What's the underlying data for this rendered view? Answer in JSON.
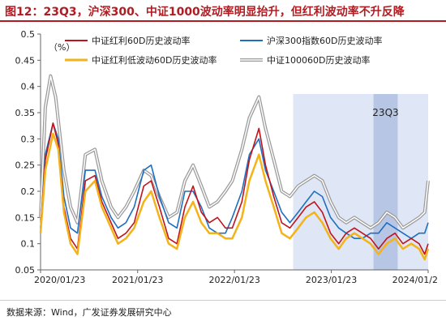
{
  "figure": {
    "title": "图12：23Q3，沪深300、中证1000波动率明显抬升，但红利波动率不升反降",
    "source": "数据来源：Wind，广发证券发展研究中心"
  },
  "chart_data": {
    "type": "line",
    "ylabel": "（%）",
    "ylim": [
      0.05,
      0.5
    ],
    "yticks": [
      0.05,
      0.1,
      0.15,
      0.2,
      0.25,
      0.3,
      0.35,
      0.4,
      0.45,
      0.5
    ],
    "xlim": [
      "2020-01-23",
      "2024-01-23"
    ],
    "xticks": [
      {
        "date": "2020-01-23",
        "label": "2020/01/23"
      },
      {
        "date": "2021-01-23",
        "label": "2021/01/23"
      },
      {
        "date": "2022-01-23",
        "label": "2022/01/23"
      },
      {
        "date": "2023-01-23",
        "label": "2023/01/23"
      },
      {
        "date": "2024-01-23",
        "label": "2024/01/2"
      }
    ],
    "shaded_regions": [
      {
        "start": "2022-09-01",
        "end": "2024-01-23",
        "color": "#dfe6f5"
      },
      {
        "start": "2023-07-01",
        "end": "2023-09-30",
        "color": "#b7c6e5",
        "label": "23Q3"
      }
    ],
    "legend_position": "top",
    "grid": false,
    "series": [
      {
        "name": "中证红利60D历史波动率",
        "color": "#c0141c",
        "points": [
          [
            "2020-01-23",
            0.13
          ],
          [
            "2020-02-10",
            0.26
          ],
          [
            "2020-03-10",
            0.33
          ],
          [
            "2020-03-30",
            0.29
          ],
          [
            "2020-04-20",
            0.17
          ],
          [
            "2020-05-15",
            0.11
          ],
          [
            "2020-06-10",
            0.09
          ],
          [
            "2020-07-10",
            0.22
          ],
          [
            "2020-08-15",
            0.23
          ],
          [
            "2020-09-10",
            0.18
          ],
          [
            "2020-10-15",
            0.14
          ],
          [
            "2020-11-10",
            0.11
          ],
          [
            "2020-12-10",
            0.12
          ],
          [
            "2021-01-10",
            0.14
          ],
          [
            "2021-02-15",
            0.21
          ],
          [
            "2021-03-15",
            0.22
          ],
          [
            "2021-04-15",
            0.17
          ],
          [
            "2021-05-20",
            0.11
          ],
          [
            "2021-06-20",
            0.1
          ],
          [
            "2021-07-20",
            0.17
          ],
          [
            "2021-08-20",
            0.21
          ],
          [
            "2021-09-20",
            0.16
          ],
          [
            "2021-10-20",
            0.14
          ],
          [
            "2021-11-20",
            0.15
          ],
          [
            "2021-12-20",
            0.13
          ],
          [
            "2022-01-15",
            0.13
          ],
          [
            "2022-02-20",
            0.18
          ],
          [
            "2022-03-20",
            0.26
          ],
          [
            "2022-04-25",
            0.32
          ],
          [
            "2022-05-20",
            0.25
          ],
          [
            "2022-06-20",
            0.19
          ],
          [
            "2022-07-20",
            0.14
          ],
          [
            "2022-08-20",
            0.13
          ],
          [
            "2022-09-20",
            0.15
          ],
          [
            "2022-10-20",
            0.17
          ],
          [
            "2022-11-20",
            0.18
          ],
          [
            "2022-12-20",
            0.16
          ],
          [
            "2023-01-20",
            0.12
          ],
          [
            "2023-02-20",
            0.1
          ],
          [
            "2023-03-20",
            0.12
          ],
          [
            "2023-04-20",
            0.13
          ],
          [
            "2023-05-20",
            0.12
          ],
          [
            "2023-06-20",
            0.11
          ],
          [
            "2023-07-20",
            0.09
          ],
          [
            "2023-08-20",
            0.11
          ],
          [
            "2023-09-20",
            0.12
          ],
          [
            "2023-10-20",
            0.1
          ],
          [
            "2023-11-20",
            0.11
          ],
          [
            "2023-12-20",
            0.1
          ],
          [
            "2024-01-10",
            0.08
          ],
          [
            "2024-01-23",
            0.1
          ]
        ]
      },
      {
        "name": "沪深300指数60D历史波动率",
        "color": "#1f6fc0",
        "points": [
          [
            "2020-01-23",
            0.13
          ],
          [
            "2020-02-10",
            0.27
          ],
          [
            "2020-03-10",
            0.33
          ],
          [
            "2020-03-30",
            0.3
          ],
          [
            "2020-04-20",
            0.19
          ],
          [
            "2020-05-15",
            0.13
          ],
          [
            "2020-06-10",
            0.12
          ],
          [
            "2020-07-10",
            0.24
          ],
          [
            "2020-08-15",
            0.24
          ],
          [
            "2020-09-10",
            0.19
          ],
          [
            "2020-10-15",
            0.15
          ],
          [
            "2020-11-10",
            0.13
          ],
          [
            "2020-12-10",
            0.14
          ],
          [
            "2021-01-10",
            0.17
          ],
          [
            "2021-02-15",
            0.24
          ],
          [
            "2021-03-15",
            0.25
          ],
          [
            "2021-04-15",
            0.19
          ],
          [
            "2021-05-20",
            0.14
          ],
          [
            "2021-06-20",
            0.13
          ],
          [
            "2021-07-20",
            0.2
          ],
          [
            "2021-08-20",
            0.2
          ],
          [
            "2021-09-20",
            0.17
          ],
          [
            "2021-10-20",
            0.13
          ],
          [
            "2021-11-20",
            0.12
          ],
          [
            "2021-12-20",
            0.12
          ],
          [
            "2022-01-15",
            0.15
          ],
          [
            "2022-02-20",
            0.2
          ],
          [
            "2022-03-20",
            0.27
          ],
          [
            "2022-04-25",
            0.3
          ],
          [
            "2022-05-20",
            0.24
          ],
          [
            "2022-06-20",
            0.2
          ],
          [
            "2022-07-20",
            0.16
          ],
          [
            "2022-08-20",
            0.14
          ],
          [
            "2022-09-20",
            0.16
          ],
          [
            "2022-10-20",
            0.18
          ],
          [
            "2022-11-20",
            0.2
          ],
          [
            "2022-12-20",
            0.19
          ],
          [
            "2023-01-20",
            0.15
          ],
          [
            "2023-02-20",
            0.13
          ],
          [
            "2023-03-20",
            0.12
          ],
          [
            "2023-04-20",
            0.11
          ],
          [
            "2023-05-20",
            0.11
          ],
          [
            "2023-06-20",
            0.12
          ],
          [
            "2023-07-20",
            0.12
          ],
          [
            "2023-08-20",
            0.14
          ],
          [
            "2023-09-20",
            0.13
          ],
          [
            "2023-10-20",
            0.12
          ],
          [
            "2023-11-20",
            0.11
          ],
          [
            "2023-12-20",
            0.12
          ],
          [
            "2024-01-10",
            0.12
          ],
          [
            "2024-01-23",
            0.14
          ]
        ]
      },
      {
        "name": "中证红利低波动60D历史波动率",
        "color": "#f3b31a",
        "points": [
          [
            "2020-01-23",
            0.12
          ],
          [
            "2020-02-10",
            0.24
          ],
          [
            "2020-03-10",
            0.31
          ],
          [
            "2020-03-30",
            0.28
          ],
          [
            "2020-04-20",
            0.16
          ],
          [
            "2020-05-15",
            0.1
          ],
          [
            "2020-06-10",
            0.08
          ],
          [
            "2020-07-10",
            0.2
          ],
          [
            "2020-08-15",
            0.22
          ],
          [
            "2020-09-10",
            0.17
          ],
          [
            "2020-10-15",
            0.13
          ],
          [
            "2020-11-10",
            0.1
          ],
          [
            "2020-12-10",
            0.11
          ],
          [
            "2021-01-10",
            0.13
          ],
          [
            "2021-02-15",
            0.18
          ],
          [
            "2021-03-15",
            0.2
          ],
          [
            "2021-04-15",
            0.15
          ],
          [
            "2021-05-20",
            0.1
          ],
          [
            "2021-06-20",
            0.09
          ],
          [
            "2021-07-20",
            0.15
          ],
          [
            "2021-08-20",
            0.18
          ],
          [
            "2021-09-20",
            0.14
          ],
          [
            "2021-10-20",
            0.12
          ],
          [
            "2021-11-20",
            0.12
          ],
          [
            "2021-12-20",
            0.11
          ],
          [
            "2022-01-15",
            0.11
          ],
          [
            "2022-02-20",
            0.15
          ],
          [
            "2022-03-20",
            0.22
          ],
          [
            "2022-04-25",
            0.27
          ],
          [
            "2022-05-20",
            0.22
          ],
          [
            "2022-06-20",
            0.17
          ],
          [
            "2022-07-20",
            0.12
          ],
          [
            "2022-08-20",
            0.11
          ],
          [
            "2022-09-20",
            0.13
          ],
          [
            "2022-10-20",
            0.15
          ],
          [
            "2022-11-20",
            0.16
          ],
          [
            "2022-12-20",
            0.14
          ],
          [
            "2023-01-20",
            0.11
          ],
          [
            "2023-02-20",
            0.09
          ],
          [
            "2023-03-20",
            0.11
          ],
          [
            "2023-04-20",
            0.12
          ],
          [
            "2023-05-20",
            0.11
          ],
          [
            "2023-06-20",
            0.1
          ],
          [
            "2023-07-20",
            0.08
          ],
          [
            "2023-08-20",
            0.1
          ],
          [
            "2023-09-20",
            0.11
          ],
          [
            "2023-10-20",
            0.09
          ],
          [
            "2023-11-20",
            0.1
          ],
          [
            "2023-12-20",
            0.09
          ],
          [
            "2024-01-10",
            0.07
          ],
          [
            "2024-01-23",
            0.09
          ]
        ]
      },
      {
        "name": "中证100060D历史波动率",
        "color": "#9a9a9a",
        "points": [
          [
            "2020-01-23",
            0.15
          ],
          [
            "2020-02-10",
            0.36
          ],
          [
            "2020-03-01",
            0.42
          ],
          [
            "2020-03-20",
            0.38
          ],
          [
            "2020-04-20",
            0.24
          ],
          [
            "2020-05-15",
            0.17
          ],
          [
            "2020-06-10",
            0.14
          ],
          [
            "2020-07-10",
            0.27
          ],
          [
            "2020-08-15",
            0.28
          ],
          [
            "2020-09-10",
            0.22
          ],
          [
            "2020-10-15",
            0.17
          ],
          [
            "2020-11-10",
            0.15
          ],
          [
            "2020-12-10",
            0.17
          ],
          [
            "2021-01-10",
            0.2
          ],
          [
            "2021-02-15",
            0.24
          ],
          [
            "2021-03-15",
            0.23
          ],
          [
            "2021-04-15",
            0.19
          ],
          [
            "2021-05-20",
            0.15
          ],
          [
            "2021-06-20",
            0.16
          ],
          [
            "2021-07-20",
            0.22
          ],
          [
            "2021-08-20",
            0.25
          ],
          [
            "2021-09-20",
            0.21
          ],
          [
            "2021-10-20",
            0.17
          ],
          [
            "2021-11-20",
            0.18
          ],
          [
            "2021-12-20",
            0.2
          ],
          [
            "2022-01-15",
            0.22
          ],
          [
            "2022-02-20",
            0.28
          ],
          [
            "2022-03-20",
            0.34
          ],
          [
            "2022-04-25",
            0.38
          ],
          [
            "2022-05-20",
            0.32
          ],
          [
            "2022-06-20",
            0.26
          ],
          [
            "2022-07-20",
            0.2
          ],
          [
            "2022-08-20",
            0.19
          ],
          [
            "2022-09-20",
            0.21
          ],
          [
            "2022-10-20",
            0.22
          ],
          [
            "2022-11-20",
            0.23
          ],
          [
            "2022-12-20",
            0.22
          ],
          [
            "2023-01-20",
            0.18
          ],
          [
            "2023-02-20",
            0.15
          ],
          [
            "2023-03-20",
            0.14
          ],
          [
            "2023-04-20",
            0.15
          ],
          [
            "2023-05-20",
            0.14
          ],
          [
            "2023-06-20",
            0.13
          ],
          [
            "2023-07-20",
            0.14
          ],
          [
            "2023-08-20",
            0.16
          ],
          [
            "2023-09-20",
            0.15
          ],
          [
            "2023-10-20",
            0.13
          ],
          [
            "2023-11-20",
            0.14
          ],
          [
            "2023-12-20",
            0.15
          ],
          [
            "2024-01-10",
            0.16
          ],
          [
            "2024-01-23",
            0.22
          ]
        ]
      }
    ]
  }
}
